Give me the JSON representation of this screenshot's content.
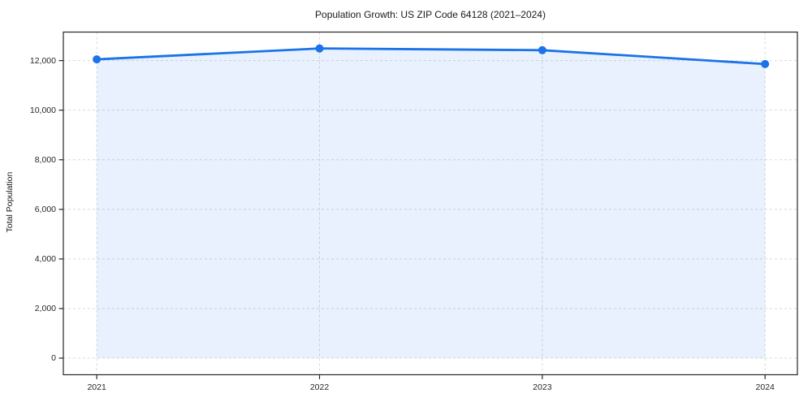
{
  "chart_data": {
    "type": "area",
    "title": "Population Growth: US ZIP Code 64128 (2021–2024)",
    "xlabel": "",
    "ylabel": "Total Population",
    "categories": [
      "2021",
      "2022",
      "2023",
      "2024"
    ],
    "x": [
      2021,
      2022,
      2023,
      2024
    ],
    "series": [
      {
        "name": "Total Population",
        "values": [
          12050,
          12490,
          12420,
          11860
        ]
      }
    ],
    "fill_baseline": 0,
    "xlim": [
      2020.85,
      2024.145
    ],
    "ylim": [
      -670,
      13150
    ],
    "ytick_values": [
      0,
      2000,
      4000,
      6000,
      8000,
      10000,
      12000
    ],
    "ytick_labels": [
      "0",
      "2,000",
      "4,000",
      "6,000",
      "8,000",
      "10,000",
      "12,000"
    ],
    "grid": "dashed, both axes, at tick positions",
    "legend": "none",
    "marker": "circle",
    "colors": {
      "line": "#1a73e8",
      "fill": "#1a73e8",
      "fill_opacity": "0.10",
      "grid": "#d9d9d9",
      "spine": "#262626",
      "tick_text": "#262626",
      "title_text": "#1a1a1a",
      "background": "#ffffff"
    }
  }
}
